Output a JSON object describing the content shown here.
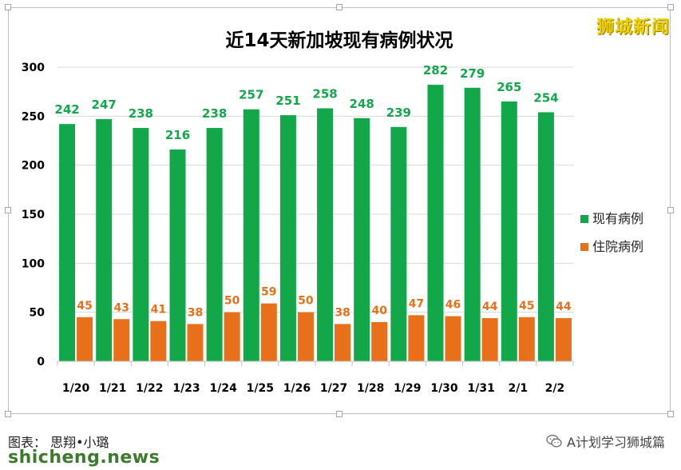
{
  "brand_watermark": "狮城新闻",
  "caption": "图表： 思翔•小璐",
  "source_watermark": "shicheng.news",
  "account_name": "A计划学习狮城篇",
  "account_icon": "wechat-icon",
  "chart_data": {
    "type": "bar",
    "title": "近14天新加坡现有病例状况",
    "categories": [
      "1/20",
      "1/21",
      "1/22",
      "1/23",
      "1/24",
      "1/25",
      "1/26",
      "1/27",
      "1/28",
      "1/29",
      "1/30",
      "1/31",
      "2/1",
      "2/2"
    ],
    "series": [
      {
        "name": "现有病例",
        "color": "#12a84a",
        "values": [
          242,
          247,
          238,
          216,
          238,
          257,
          251,
          258,
          248,
          239,
          282,
          279,
          265,
          254
        ]
      },
      {
        "name": "住院病例",
        "color": "#e8701a",
        "values": [
          45,
          43,
          41,
          38,
          50,
          59,
          50,
          38,
          40,
          47,
          46,
          44,
          45,
          44
        ]
      }
    ],
    "ylim": [
      0,
      300
    ],
    "yticks": [
      0,
      50,
      100,
      150,
      200,
      250,
      300
    ],
    "grid": true,
    "legend": "right",
    "xlabel": "",
    "ylabel": ""
  }
}
